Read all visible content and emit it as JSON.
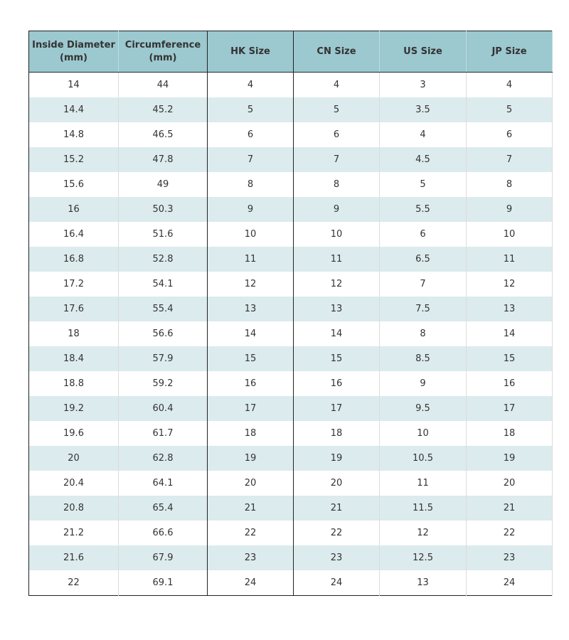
{
  "table": {
    "header": [
      "Inside Diameter\n(mm)",
      "Circumference\n(mm)",
      "HK Size",
      "CN Size",
      "US Size",
      "JP Size"
    ],
    "rows": [
      [
        "14",
        "44",
        "4",
        "4",
        "3",
        "4"
      ],
      [
        "14.4",
        "45.2",
        "5",
        "5",
        "3.5",
        "5"
      ],
      [
        "14.8",
        "46.5",
        "6",
        "6",
        "4",
        "6"
      ],
      [
        "15.2",
        "47.8",
        "7",
        "7",
        "4.5",
        "7"
      ],
      [
        "15.6",
        "49",
        "8",
        "8",
        "5",
        "8"
      ],
      [
        "16",
        "50.3",
        "9",
        "9",
        "5.5",
        "9"
      ],
      [
        "16.4",
        "51.6",
        "10",
        "10",
        "6",
        "10"
      ],
      [
        "16.8",
        "52.8",
        "11",
        "11",
        "6.5",
        "11"
      ],
      [
        "17.2",
        "54.1",
        "12",
        "12",
        "7",
        "12"
      ],
      [
        "17.6",
        "55.4",
        "13",
        "13",
        "7.5",
        "13"
      ],
      [
        "18",
        "56.6",
        "14",
        "14",
        "8",
        "14"
      ],
      [
        "18.4",
        "57.9",
        "15",
        "15",
        "8.5",
        "15"
      ],
      [
        "18.8",
        "59.2",
        "16",
        "16",
        "9",
        "16"
      ],
      [
        "19.2",
        "60.4",
        "17",
        "17",
        "9.5",
        "17"
      ],
      [
        "19.6",
        "61.7",
        "18",
        "18",
        "10",
        "18"
      ],
      [
        "20",
        "62.8",
        "19",
        "19",
        "10.5",
        "19"
      ],
      [
        "20.4",
        "64.1",
        "20",
        "20",
        "11",
        "20"
      ],
      [
        "20.8",
        "65.4",
        "21",
        "21",
        "11.5",
        "21"
      ],
      [
        "21.2",
        "66.6",
        "22",
        "22",
        "12",
        "22"
      ],
      [
        "21.6",
        "67.9",
        "23",
        "23",
        "12.5",
        "23"
      ],
      [
        "22",
        "69.1",
        "24",
        "24",
        "13",
        "24"
      ]
    ]
  }
}
